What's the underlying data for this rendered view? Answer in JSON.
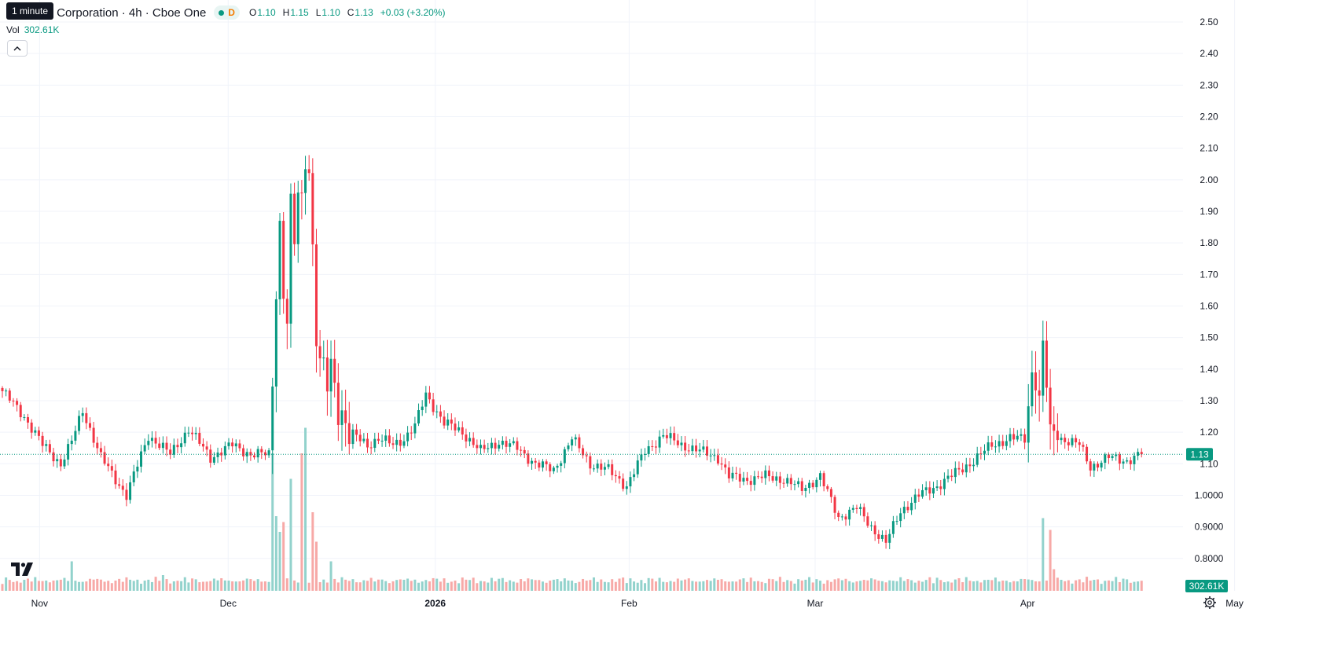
{
  "header": {
    "tooltip": "1 minute",
    "symbol": "y Growth Corporation · 4h · Cboe One",
    "status_letter": "D",
    "o_key": "O",
    "o_val": "1.10",
    "h_key": "H",
    "h_val": "1.15",
    "l_key": "L",
    "l_val": "1.10",
    "c_key": "C",
    "c_val": "1.13",
    "change": "+0.03 (+3.20%)"
  },
  "volume": {
    "label": "Vol",
    "value": "302.61K"
  },
  "colors": {
    "up": "#089981",
    "down": "#f23645",
    "up_volume": "#92d2cc",
    "down_volume": "#f7a9a7",
    "grid": "#f0f3fa",
    "text": "#131722"
  },
  "icons": {
    "logo": "tradingview-logo-icon",
    "collapse": "chevron-up-icon",
    "settings": "gear-icon"
  },
  "chart_data": {
    "type": "candlestick",
    "interval": "4h",
    "y_ticks": [
      "2.50",
      "2.40",
      "2.30",
      "2.20",
      "2.10",
      "2.00",
      "1.90",
      "1.80",
      "1.70",
      "1.60",
      "1.50",
      "1.40",
      "1.30",
      "1.20",
      "1.10",
      "1.0000",
      "0.9000",
      "0.8000"
    ],
    "ylim": [
      0.77,
      2.52
    ],
    "x_labels": [
      {
        "label": "Nov",
        "pos": 0.03
      },
      {
        "label": "Dec",
        "pos": 0.173
      },
      {
        "label": "2026",
        "pos": 0.33
      },
      {
        "label": "Feb",
        "pos": 0.477
      },
      {
        "label": "Mar",
        "pos": 0.618
      },
      {
        "label": "Apr",
        "pos": 0.779
      },
      {
        "label": "May",
        "pos": 0.936
      }
    ],
    "last_price": "1.13",
    "last_volume": "302.61K",
    "grid": true,
    "anchors": [
      [
        0,
        1.33
      ],
      [
        6,
        1.25
      ],
      [
        11,
        1.16
      ],
      [
        16,
        1.1
      ],
      [
        19,
        1.17
      ],
      [
        22,
        1.27
      ],
      [
        27,
        1.12
      ],
      [
        34,
        1.0
      ],
      [
        40,
        1.19
      ],
      [
        46,
        1.13
      ],
      [
        51,
        1.21
      ],
      [
        57,
        1.12
      ],
      [
        63,
        1.16
      ],
      [
        68,
        1.13
      ],
      [
        73,
        1.13
      ],
      [
        74,
        1.38
      ],
      [
        75,
        1.68
      ],
      [
        76,
        1.85
      ],
      [
        77,
        1.66
      ],
      [
        78,
        1.55
      ],
      [
        79,
        1.88
      ],
      [
        80,
        1.8
      ],
      [
        81,
        1.95
      ],
      [
        82,
        1.92
      ],
      [
        83,
        2.1
      ],
      [
        84,
        2.05
      ],
      [
        85,
        1.78
      ],
      [
        86,
        1.52
      ],
      [
        87,
        1.4
      ],
      [
        89,
        1.35
      ],
      [
        90,
        1.4
      ],
      [
        92,
        1.3
      ],
      [
        95,
        1.2
      ],
      [
        100,
        1.16
      ],
      [
        103,
        1.18
      ],
      [
        107,
        1.16
      ],
      [
        110,
        1.18
      ],
      [
        113,
        1.22
      ],
      [
        116,
        1.32
      ],
      [
        121,
        1.23
      ],
      [
        126,
        1.2
      ],
      [
        131,
        1.14
      ],
      [
        136,
        1.17
      ],
      [
        141,
        1.15
      ],
      [
        146,
        1.1
      ],
      [
        151,
        1.08
      ],
      [
        156,
        1.18
      ],
      [
        161,
        1.1
      ],
      [
        166,
        1.08
      ],
      [
        171,
        1.03
      ],
      [
        176,
        1.14
      ],
      [
        181,
        1.19
      ],
      [
        186,
        1.16
      ],
      [
        191,
        1.14
      ],
      [
        196,
        1.12
      ],
      [
        199,
        1.06
      ],
      [
        204,
        1.05
      ],
      [
        209,
        1.06
      ],
      [
        214,
        1.05
      ],
      [
        219,
        1.02
      ],
      [
        224,
        1.06
      ],
      [
        229,
        0.93
      ],
      [
        234,
        0.96
      ],
      [
        238,
        0.9
      ],
      [
        242,
        0.85
      ],
      [
        246,
        0.95
      ],
      [
        251,
        1.0
      ],
      [
        256,
        1.03
      ],
      [
        261,
        1.07
      ],
      [
        266,
        1.11
      ],
      [
        271,
        1.16
      ],
      [
        276,
        1.18
      ],
      [
        280,
        1.18
      ],
      [
        282,
        1.39
      ],
      [
        284,
        1.31
      ],
      [
        285,
        1.48
      ],
      [
        287,
        1.21
      ],
      [
        290,
        1.18
      ],
      [
        295,
        1.16
      ],
      [
        298,
        1.09
      ],
      [
        303,
        1.12
      ],
      [
        308,
        1.11
      ],
      [
        312,
        1.13
      ]
    ],
    "volume_spikes": [
      [
        74,
        0.7
      ],
      [
        75,
        0.38
      ],
      [
        76,
        0.3
      ],
      [
        77,
        0.35
      ],
      [
        79,
        0.57
      ],
      [
        82,
        0.7
      ],
      [
        83,
        0.83
      ],
      [
        85,
        0.4
      ],
      [
        86,
        0.25
      ],
      [
        90,
        0.15
      ],
      [
        285,
        0.37
      ],
      [
        287,
        0.31
      ],
      [
        288,
        0.11
      ],
      [
        19,
        0.15
      ],
      [
        44,
        0.08
      ]
    ]
  }
}
